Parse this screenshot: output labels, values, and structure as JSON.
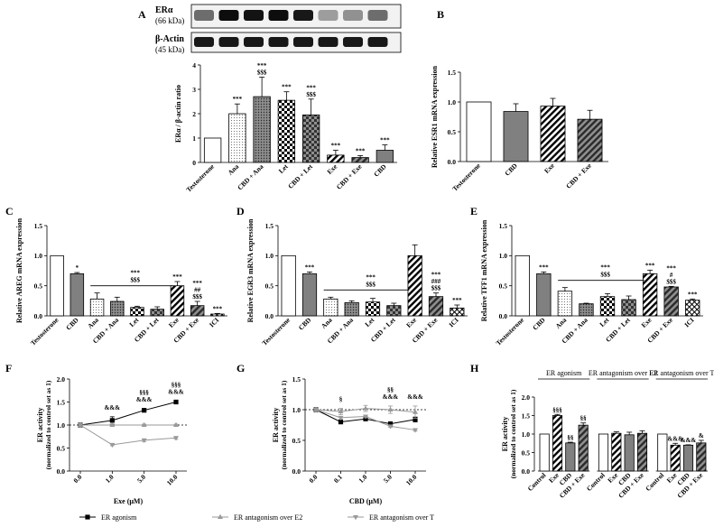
{
  "colors": {
    "black": "#000000",
    "gray": "#808080",
    "lightgray": "#a6a6a6",
    "darkgray": "#3f3f3f",
    "white": "#ffffff"
  },
  "chart_data": [
    {
      "panel": "A",
      "type": "bar",
      "blot": {
        "labels": [
          "ERα",
          "(66 kDa)",
          "β-Actin",
          "(45 kDa)"
        ]
      },
      "ylabel": "ERα / β-actin ratio",
      "ylim": [
        0,
        4
      ],
      "yticks": [
        0,
        1,
        2,
        3,
        4
      ],
      "categories": [
        "Testosterone",
        "Ana",
        "CBD + Ana",
        "Let",
        "CBD + Let",
        "Exe",
        "CBD + Exe",
        "CBD"
      ],
      "values": [
        1.0,
        2.0,
        2.7,
        2.55,
        1.95,
        0.3,
        0.2,
        0.5
      ],
      "errors": [
        0,
        0.4,
        0.8,
        0.35,
        0.65,
        0.2,
        0.08,
        0.22
      ],
      "annotations": [
        [],
        [
          "***"
        ],
        [
          "***",
          "$$$"
        ],
        [
          "***"
        ],
        [
          "***",
          "$$$"
        ],
        [
          "***"
        ],
        [
          "***"
        ],
        [
          "***"
        ]
      ]
    },
    {
      "panel": "B",
      "type": "bar",
      "ylabel": "Relative ESR1 mRNA expression",
      "ylim": [
        0,
        1.5
      ],
      "yticks": [
        0.0,
        0.5,
        1.0,
        1.5
      ],
      "categories": [
        "Testosterone",
        "CBD",
        "Exe",
        "CBD + Exe"
      ],
      "values": [
        1.0,
        0.84,
        0.93,
        0.71
      ],
      "errors": [
        0,
        0.13,
        0.13,
        0.15
      ],
      "annotations": [
        [],
        [],
        [],
        []
      ]
    },
    {
      "panel": "C",
      "type": "bar",
      "ylabel": "Relative AREG mRNA expression",
      "ylim": [
        0,
        1.5
      ],
      "yticks": [
        0.0,
        0.5,
        1.0,
        1.5
      ],
      "categories": [
        "Testosterone",
        "CBD",
        "Ana",
        "CBD + Ana",
        "Let",
        "CBD + Let",
        "Exe",
        "CBD + Exe",
        "ICI"
      ],
      "values": [
        1.0,
        0.7,
        0.28,
        0.24,
        0.14,
        0.11,
        0.5,
        0.17,
        0.03
      ],
      "errors": [
        0,
        0.02,
        0.1,
        0.07,
        0.02,
        0.04,
        0.07,
        0.07,
        0.01
      ],
      "annotations": [
        [],
        [
          "*"
        ],
        [],
        [],
        [],
        [],
        [
          "***"
        ],
        [
          "***",
          "##",
          "$$$"
        ],
        [
          "***"
        ]
      ],
      "bracket": {
        "from": 2,
        "to": 5,
        "labels": [
          "***",
          "$$$"
        ]
      }
    },
    {
      "panel": "D",
      "type": "bar",
      "ylabel": "Relative EGR3 mRNA expression",
      "ylim": [
        0,
        1.5
      ],
      "yticks": [
        0.0,
        0.5,
        1.0,
        1.5
      ],
      "categories": [
        "Testosterone",
        "CBD",
        "Ana",
        "CBD + Ana",
        "Let",
        "CBD + Let",
        "Exe",
        "CBD + Exe",
        "ICI"
      ],
      "values": [
        1.0,
        0.7,
        0.28,
        0.22,
        0.23,
        0.17,
        1.0,
        0.32,
        0.13
      ],
      "errors": [
        0,
        0.03,
        0.03,
        0.03,
        0.06,
        0.04,
        0.18,
        0.06,
        0.05
      ],
      "annotations": [
        [],
        [
          "***"
        ],
        [],
        [],
        [],
        [],
        [],
        [
          "***",
          "###",
          "$$$"
        ],
        [
          "***"
        ]
      ],
      "bracket": {
        "from": 2,
        "to": 5,
        "labels": [
          "***",
          "$$$"
        ]
      }
    },
    {
      "panel": "E",
      "type": "bar",
      "ylabel": "Relative TFF1 mRNA expression",
      "ylim": [
        0,
        1.5
      ],
      "yticks": [
        0.0,
        0.5,
        1.0,
        1.5
      ],
      "categories": [
        "Testosterone",
        "CBD",
        "Ana",
        "CBD + Ana",
        "Let",
        "CBD + Let",
        "Exe",
        "CBD + Exe",
        "ICI"
      ],
      "values": [
        1.0,
        0.7,
        0.41,
        0.2,
        0.32,
        0.27,
        0.7,
        0.48,
        0.26
      ],
      "errors": [
        0,
        0.03,
        0.06,
        0.01,
        0.05,
        0.06,
        0.06,
        0.01,
        0.02
      ],
      "annotations": [
        [],
        [
          "***"
        ],
        [],
        [],
        [],
        [],
        [
          "***"
        ],
        [
          "***",
          "#",
          "$$$"
        ],
        [
          "***"
        ]
      ],
      "bracket": {
        "from": 2,
        "to": 5,
        "labels": [
          "***",
          "$$$"
        ]
      }
    },
    {
      "panel": "F",
      "type": "line",
      "xlabel": "Exe (μM)",
      "ylabel": "ER activity",
      "ylabel2": "(normalized to control set as 1)",
      "x": [
        "0.0",
        "1.0",
        "5.0",
        "10.0"
      ],
      "ylim": [
        0,
        2.0
      ],
      "yticks": [
        0.0,
        0.5,
        1.0,
        1.5,
        2.0
      ],
      "series": [
        {
          "name": "ER agonism",
          "values": [
            1.0,
            1.1,
            1.32,
            1.5
          ],
          "errors": [
            0,
            0.08,
            0.03,
            0.02
          ],
          "style": "black-square"
        },
        {
          "name": "ER antagonism over E2",
          "values": [
            1.0,
            1.0,
            1.0,
            1.0
          ],
          "errors": [
            0,
            0.02,
            0.02,
            0.02
          ],
          "style": "gray-up"
        },
        {
          "name": "ER antagonism over T",
          "values": [
            1.0,
            0.57,
            0.67,
            0.72
          ],
          "errors": [
            0,
            0.02,
            0.03,
            0.03
          ],
          "style": "gray-down"
        }
      ],
      "annotations": [
        [],
        [
          "&&&"
        ],
        [
          "§§§",
          "&&&"
        ],
        [
          "§§§",
          "&&&"
        ]
      ]
    },
    {
      "panel": "G",
      "type": "line",
      "xlabel": "CBD (μM)",
      "ylabel": "ER activity",
      "ylabel2": "(normalized to control set as 1)",
      "x": [
        "0.0",
        "0.1",
        "1.0",
        "5.0",
        "10.0"
      ],
      "ylim": [
        0,
        1.5
      ],
      "yticks": [
        0.0,
        0.5,
        1.0,
        1.5
      ],
      "series": [
        {
          "name": "ER agonism",
          "values": [
            1.0,
            0.8,
            0.85,
            0.77,
            0.84
          ],
          "errors": [
            0,
            0.03,
            0.03,
            0.03,
            0.04
          ],
          "style": "black-square"
        },
        {
          "name": "ER antagonism over E2",
          "values": [
            1.0,
            0.97,
            1.02,
            1.0,
            0.96
          ],
          "errors": [
            0,
            0.05,
            0.05,
            0.06,
            0.1
          ],
          "style": "gray-up"
        },
        {
          "name": "ER antagonism over T",
          "values": [
            1.0,
            0.87,
            0.89,
            0.73,
            0.67
          ],
          "errors": [
            0,
            0.02,
            0.02,
            0.02,
            0.02
          ],
          "style": "gray-down"
        }
      ],
      "annotations": [
        [],
        [
          "§"
        ],
        [],
        [
          "§§",
          "&&&"
        ],
        [
          "&&&"
        ]
      ]
    },
    {
      "panel": "H",
      "type": "bar",
      "ylabel": "ER activity",
      "ylabel2": "(normalized to control set as 1)",
      "ylim": [
        0,
        2.0
      ],
      "yticks": [
        0.0,
        0.5,
        1.0,
        1.5,
        2.0
      ],
      "groups": [
        {
          "title": "ER agonism",
          "categories": [
            "Control",
            "Exe",
            "CBD",
            "CBD + Exe"
          ],
          "values": [
            1.0,
            1.5,
            0.76,
            1.24
          ],
          "errors": [
            0,
            0.03,
            0.02,
            0.06
          ],
          "annotations": [
            [],
            [
              "§§§"
            ],
            [
              "§§"
            ],
            [
              "§§"
            ]
          ]
        },
        {
          "title": "ER antagonism over E2",
          "categories": [
            "Control",
            "Exe",
            "CBD",
            "CBD + Exe"
          ],
          "values": [
            1.0,
            1.02,
            0.98,
            1.02
          ],
          "errors": [
            0,
            0.04,
            0.07,
            0.07
          ],
          "annotations": [
            [],
            [],
            [],
            []
          ]
        },
        {
          "title": "ER antagonism over T",
          "categories": [
            "Control",
            "Exe",
            "CBD",
            "CBD + Exe"
          ],
          "values": [
            1.0,
            0.7,
            0.7,
            0.76
          ],
          "errors": [
            0,
            0.05,
            0.01,
            0.07
          ],
          "annotations": [
            [],
            [
              "&&&"
            ],
            [
              "&&&"
            ],
            [
              "&"
            ]
          ]
        }
      ]
    }
  ]
}
